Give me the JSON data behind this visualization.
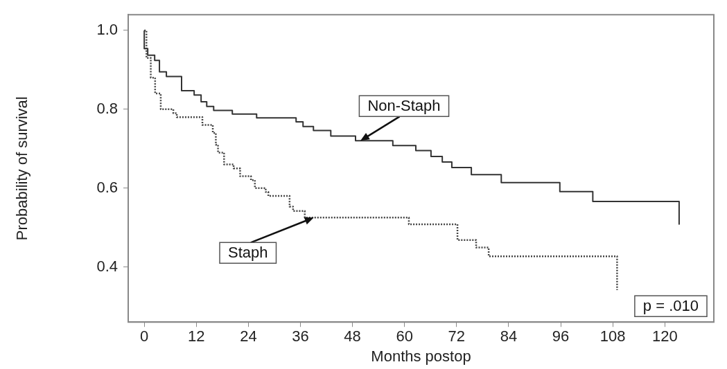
{
  "chart_data": {
    "type": "step",
    "xlabel": "Months postop",
    "ylabel": "Probability of survival",
    "xlim": [
      -3.7,
      131.3
    ],
    "xticks": [
      0,
      12,
      24,
      36,
      48,
      60,
      72,
      84,
      96,
      108,
      120
    ],
    "ylim": [
      0.26,
      1.04
    ],
    "yticks": [
      {
        "value": 0.4,
        "label": "0.4"
      },
      {
        "value": 0.6,
        "label": "0.6"
      },
      {
        "value": 0.8,
        "label": "0.8"
      },
      {
        "value": 1,
        "label": "1.0"
      }
    ],
    "grid": false,
    "legend": false,
    "marker": "none",
    "series": [
      {
        "name": "Non-Staph",
        "color": "#333333",
        "line_style": "solid",
        "x": [
          0,
          0,
          0.8,
          2.4,
          3.5,
          5.1,
          8.6,
          11.5,
          13.1,
          14.4,
          16,
          20.3,
          25.9,
          35,
          36.6,
          39,
          43,
          48.7,
          57.3,
          62.6,
          66.1,
          68.7,
          70.9,
          75.4,
          82.3,
          95.8,
          103.4,
          123.3
        ],
        "values": [
          1.0,
          0.954,
          0.937,
          0.924,
          0.895,
          0.883,
          0.847,
          0.836,
          0.819,
          0.807,
          0.797,
          0.788,
          0.778,
          0.768,
          0.756,
          0.746,
          0.732,
          0.72,
          0.708,
          0.695,
          0.68,
          0.666,
          0.652,
          0.634,
          0.614,
          0.591,
          0.566,
          0.507
        ]
      },
      {
        "name": "Staph",
        "color": "#444444",
        "line_style": "dotted",
        "x": [
          0,
          0.5,
          1.5,
          2.5,
          3.8,
          6.7,
          7.5,
          13.4,
          15.8,
          16.5,
          17,
          18.4,
          20.6,
          22.1,
          24.6,
          25.5,
          28,
          28.6,
          33.5,
          34.3,
          37,
          61,
          72.2,
          76.5,
          79.4,
          109
        ],
        "values": [
          1.0,
          0.93,
          0.88,
          0.84,
          0.8,
          0.79,
          0.78,
          0.76,
          0.74,
          0.71,
          0.69,
          0.66,
          0.65,
          0.63,
          0.62,
          0.6,
          0.59,
          0.58,
          0.553,
          0.542,
          0.525,
          0.508,
          0.468,
          0.449,
          0.427,
          0.341
        ]
      }
    ],
    "annotations": [
      "p = .010"
    ]
  }
}
